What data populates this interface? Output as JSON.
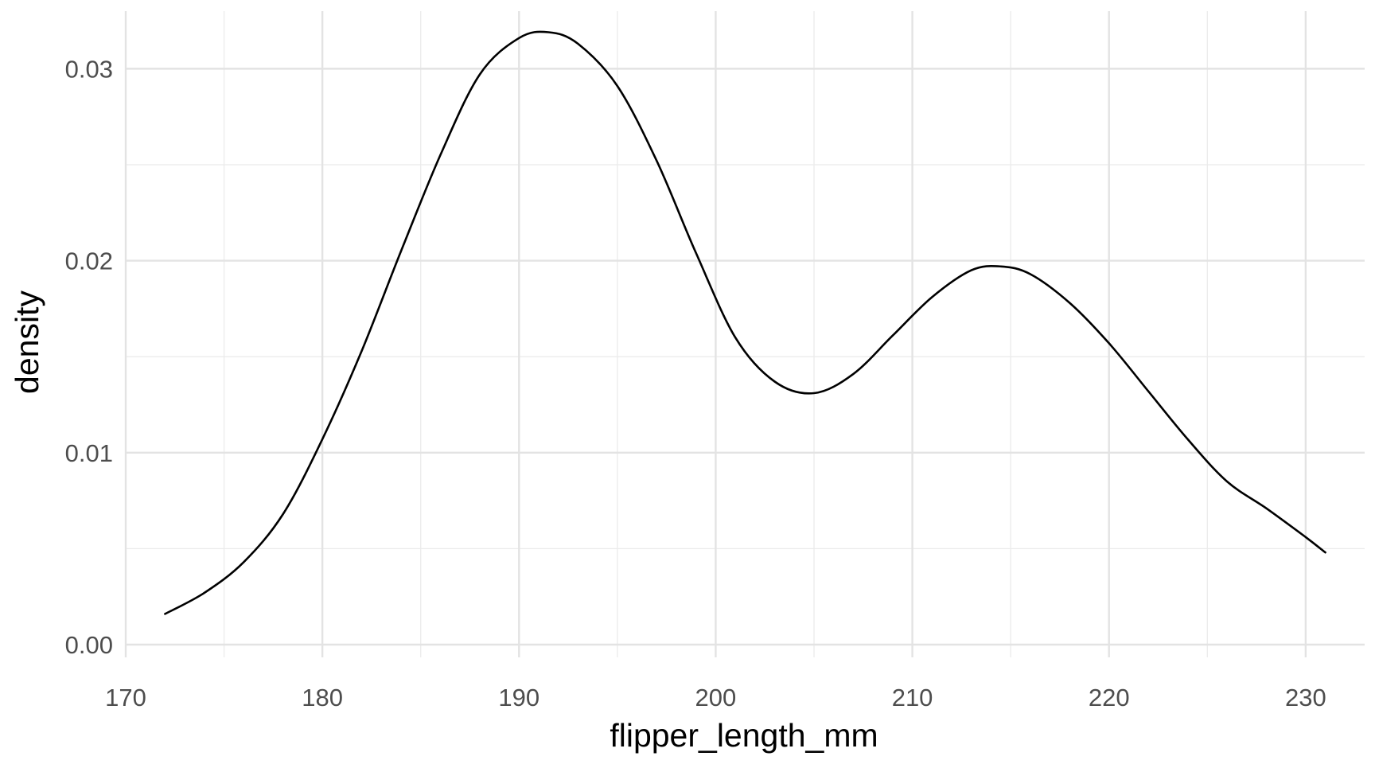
{
  "chart_data": {
    "type": "line",
    "title": "",
    "xlabel": "flipper_length_mm",
    "ylabel": "density",
    "xlim": [
      170,
      233
    ],
    "ylim": [
      0,
      0.033
    ],
    "x_ticks": [
      170,
      180,
      190,
      200,
      210,
      220,
      230
    ],
    "x_tick_labels": [
      "170",
      "180",
      "190",
      "200",
      "210",
      "220",
      "230"
    ],
    "y_ticks": [
      0,
      0.01,
      0.02,
      0.03
    ],
    "y_tick_labels": [
      "0.00",
      "0.01",
      "0.02",
      "0.03"
    ],
    "grid": true,
    "legend": "none",
    "series": [
      {
        "x": [
          172,
          174,
          176,
          178,
          180,
          182,
          184,
          186,
          188,
          190,
          191.5,
          193,
          195,
          197,
          199,
          201,
          203,
          205,
          207,
          209,
          211,
          213,
          214.5,
          216,
          218,
          220,
          222,
          224,
          226,
          228,
          230,
          231
        ],
        "y": [
          0.0016,
          0.0027,
          0.0043,
          0.0068,
          0.0107,
          0.0153,
          0.0205,
          0.0255,
          0.0297,
          0.0316,
          0.0319,
          0.0313,
          0.0291,
          0.0252,
          0.0204,
          0.016,
          0.0137,
          0.0131,
          0.0141,
          0.0161,
          0.0181,
          0.0195,
          0.0197,
          0.0193,
          0.0178,
          0.0157,
          0.0132,
          0.0107,
          0.0085,
          0.0071,
          0.0056,
          0.0048
        ],
        "color": "#000000"
      }
    ]
  }
}
